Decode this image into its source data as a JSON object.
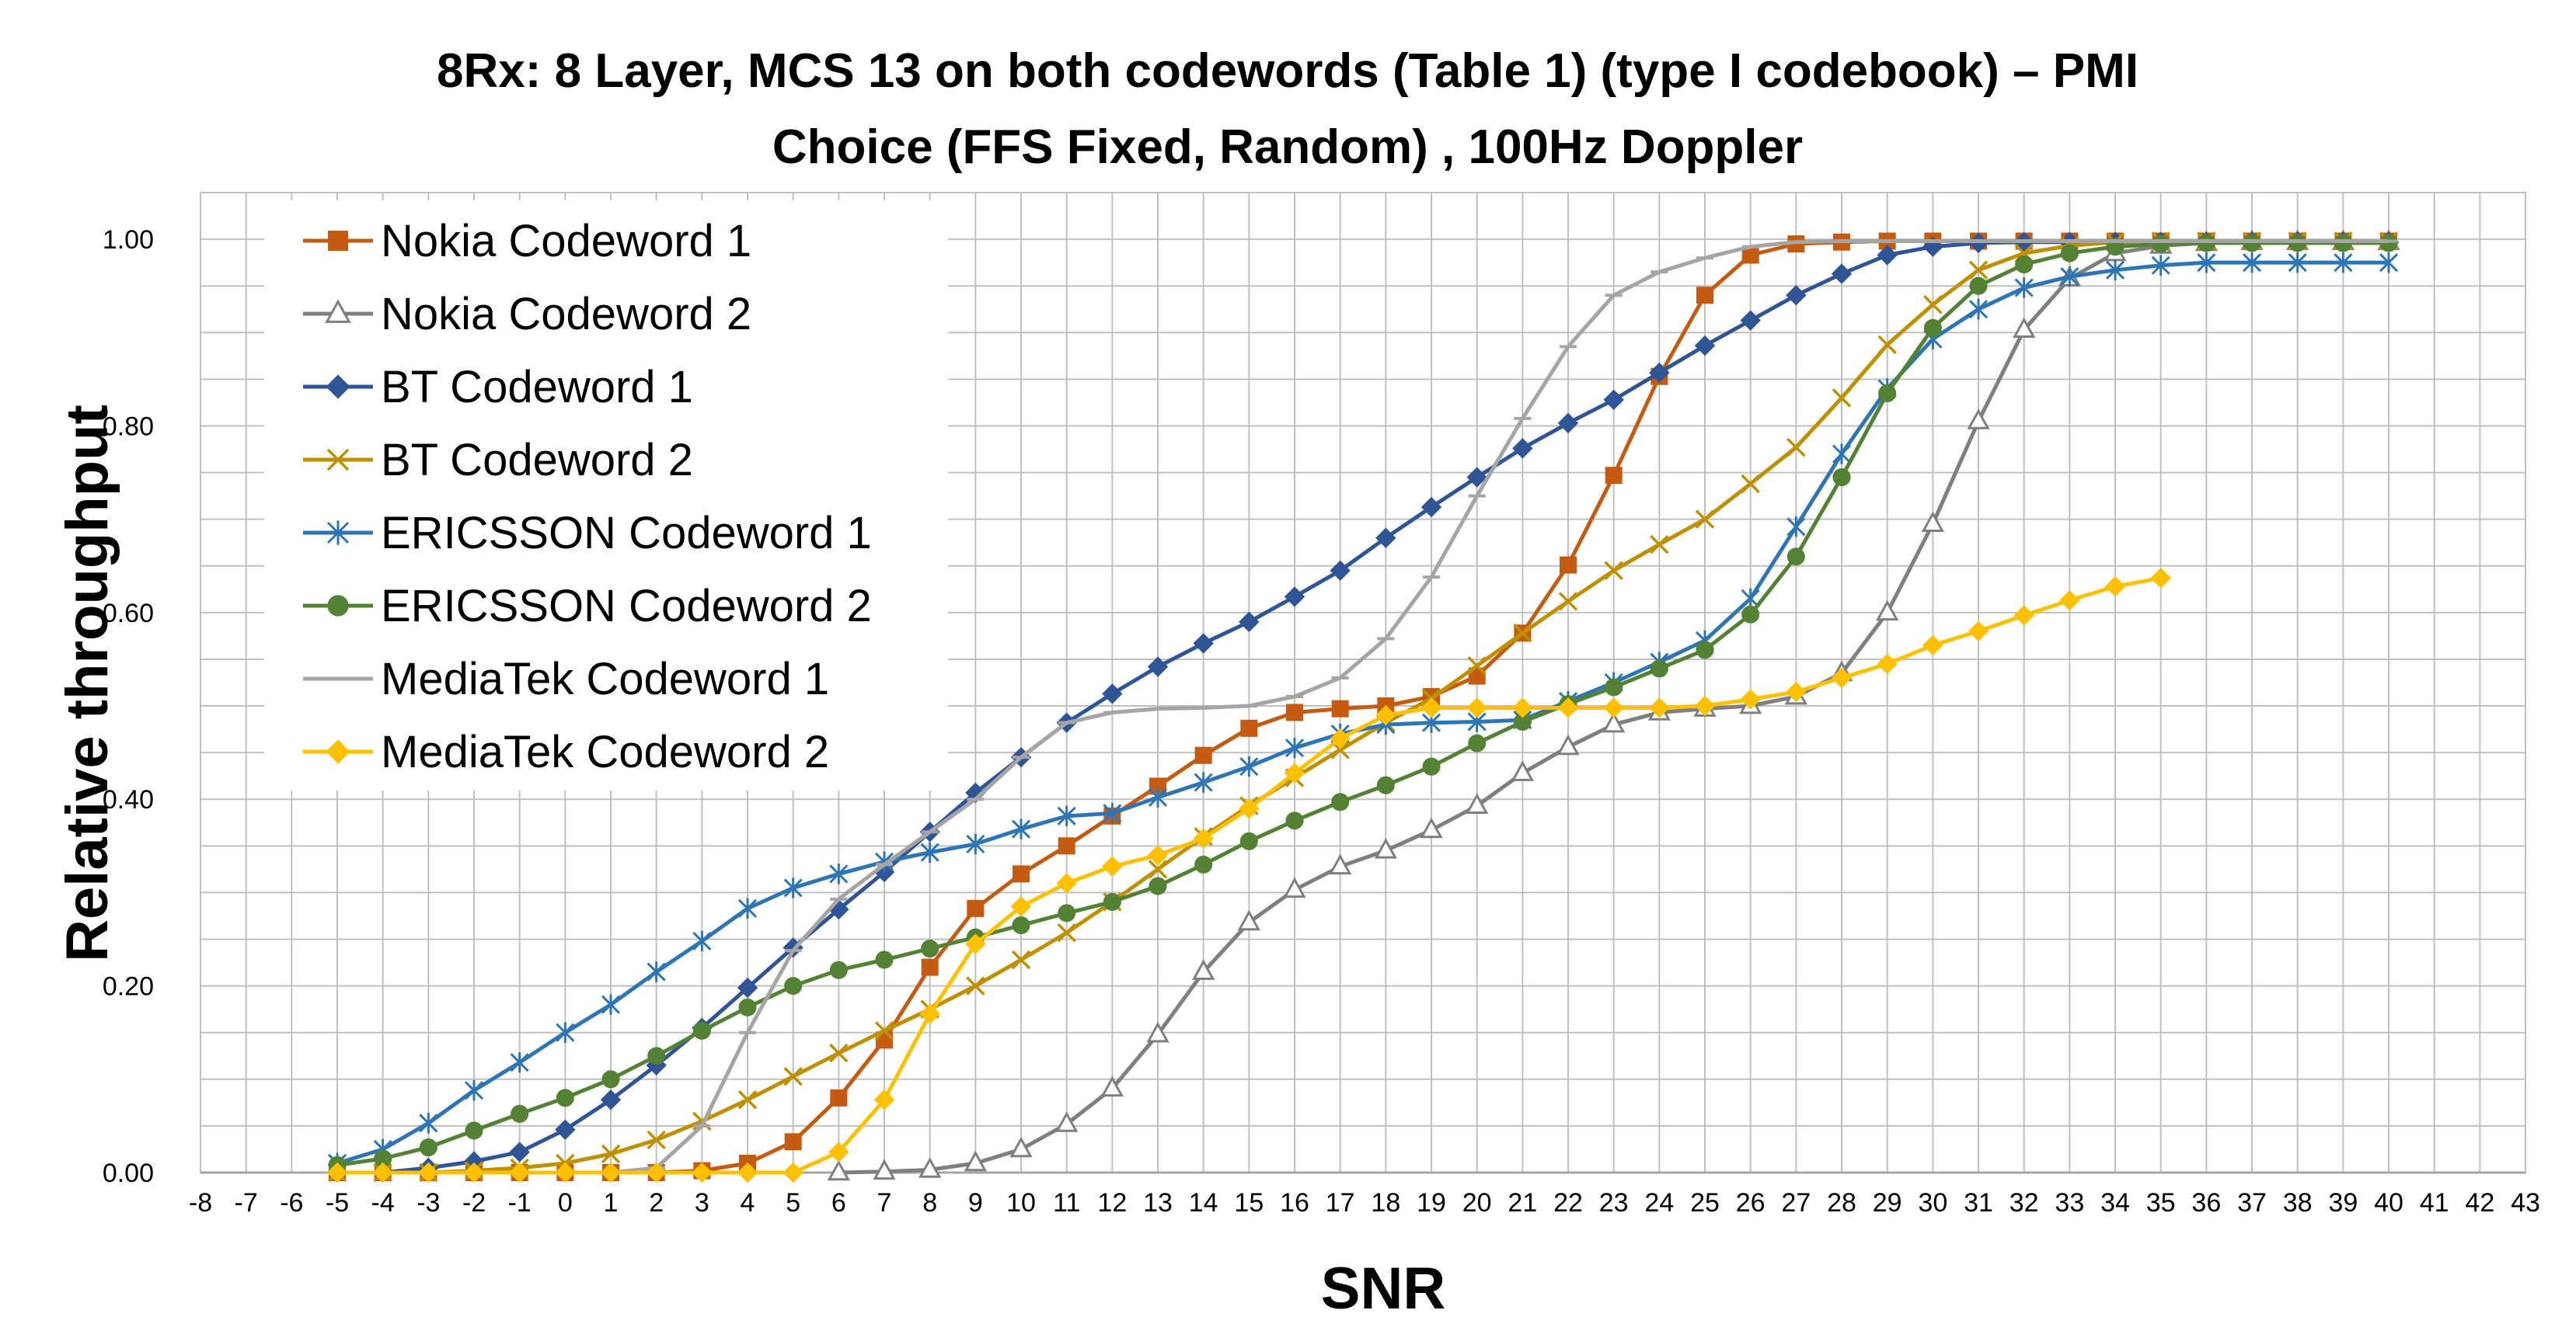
{
  "chart_data": {
    "type": "line",
    "title_lines": [
      "8Rx: 8 Layer, MCS 13 on both codewords (Table 1) (type I codebook) – PMI",
      "Choice (FFS Fixed, Random) , 100Hz Doppler"
    ],
    "xlabel": "SNR",
    "ylabel": "Relative throughput",
    "xlim": [
      -8,
      43
    ],
    "ylim": [
      0,
      1.05
    ],
    "x_ticks": [
      -8,
      -7,
      -6,
      -5,
      -4,
      -3,
      -2,
      -1,
      0,
      1,
      2,
      3,
      4,
      5,
      6,
      7,
      8,
      9,
      10,
      11,
      12,
      13,
      14,
      15,
      16,
      17,
      18,
      19,
      20,
      21,
      22,
      23,
      24,
      25,
      26,
      27,
      28,
      29,
      30,
      31,
      32,
      33,
      34,
      35,
      36,
      37,
      38,
      39,
      40,
      41,
      42,
      43
    ],
    "x_tick_labels": [
      "-8",
      "-7",
      "-6",
      "-5",
      "-4",
      "-3",
      "-2",
      "-1",
      "0",
      "1",
      "2",
      "3",
      "4",
      "5",
      "6",
      "7",
      "8",
      "9",
      "10",
      "11",
      "12",
      "13",
      "14",
      "15",
      "16",
      "17",
      "18",
      "19",
      "20",
      "21",
      "22",
      "23",
      "24",
      "25",
      "26",
      "27",
      "28",
      "29",
      "30",
      "31",
      "32",
      "33",
      "34",
      "35",
      "36",
      "37",
      "38",
      "39",
      "40",
      "41",
      "42",
      "43"
    ],
    "y_ticks": [
      0,
      0.2,
      0.4,
      0.6,
      0.8,
      1.0
    ],
    "y_tick_labels": [
      "0.00",
      "0.20",
      "0.40",
      "0.60",
      "0.80",
      "1.00"
    ],
    "grid": true,
    "legend_position": "top-left",
    "series": [
      {
        "name": "Nokia Codeword 1",
        "color": "#C55A11",
        "marker": "square",
        "x": [
          -5,
          -4,
          -3,
          -2,
          -1,
          0,
          1,
          2,
          3,
          4,
          5,
          6,
          7,
          8,
          9,
          10,
          11,
          12,
          13,
          14,
          15,
          16,
          17,
          18,
          19,
          20,
          21,
          22,
          23,
          24,
          25,
          26,
          27,
          28,
          29,
          30,
          31,
          32,
          33,
          34,
          35,
          36,
          37,
          38,
          39,
          40
        ],
        "y": [
          0,
          0,
          0,
          0,
          0,
          0,
          0,
          0,
          0.002,
          0.01,
          0.033,
          0.08,
          0.142,
          0.22,
          0.283,
          0.32,
          0.35,
          0.382,
          0.414,
          0.447,
          0.476,
          0.493,
          0.497,
          0.5,
          0.51,
          0.532,
          0.578,
          0.651,
          0.747,
          0.853,
          0.94,
          0.983,
          0.995,
          0.997,
          0.998,
          0.998,
          0.998,
          0.998,
          0.998,
          0.998,
          0.998,
          0.998,
          0.998,
          0.998,
          0.998,
          0.998
        ]
      },
      {
        "name": "Nokia Codeword 2",
        "color": "#7F7F7F",
        "marker": "triangle",
        "x": [
          6,
          7,
          8,
          9,
          10,
          11,
          12,
          13,
          14,
          15,
          16,
          17,
          18,
          19,
          20,
          21,
          22,
          23,
          24,
          25,
          26,
          27,
          28,
          29,
          30,
          31,
          32,
          33,
          34,
          35,
          36,
          37,
          38,
          39,
          40
        ],
        "y": [
          0,
          0.001,
          0.003,
          0.01,
          0.025,
          0.052,
          0.09,
          0.148,
          0.215,
          0.268,
          0.303,
          0.328,
          0.345,
          0.367,
          0.393,
          0.428,
          0.456,
          0.48,
          0.493,
          0.497,
          0.5,
          0.51,
          0.535,
          0.6,
          0.695,
          0.805,
          0.903,
          0.958,
          0.985,
          0.993,
          0.996,
          0.997,
          0.997,
          0.997,
          0.997
        ]
      },
      {
        "name": "BT Codeword 1",
        "color": "#2F5597",
        "marker": "diamond",
        "x": [
          -5,
          -4,
          -3,
          -2,
          -1,
          0,
          1,
          2,
          3,
          4,
          5,
          6,
          7,
          8,
          9,
          10,
          11,
          12,
          13,
          14,
          15,
          16,
          17,
          18,
          19,
          20,
          21,
          22,
          23,
          24,
          25,
          26,
          27,
          28,
          29,
          30,
          31,
          32,
          33,
          34,
          35,
          36,
          37,
          38,
          39,
          40
        ],
        "y": [
          0,
          0,
          0.005,
          0.012,
          0.022,
          0.046,
          0.078,
          0.115,
          0.155,
          0.198,
          0.241,
          0.282,
          0.322,
          0.365,
          0.407,
          0.445,
          0.482,
          0.513,
          0.542,
          0.567,
          0.59,
          0.617,
          0.645,
          0.68,
          0.713,
          0.745,
          0.776,
          0.803,
          0.828,
          0.857,
          0.886,
          0.913,
          0.94,
          0.963,
          0.983,
          0.992,
          0.996,
          0.997,
          0.997,
          0.997,
          0.997,
          0.997,
          0.997,
          0.997,
          0.997,
          0.997
        ]
      },
      {
        "name": "BT Codeword 2",
        "color": "#BF9000",
        "marker": "x",
        "x": [
          -5,
          -4,
          -3,
          -2,
          -1,
          0,
          1,
          2,
          3,
          4,
          5,
          6,
          7,
          8,
          9,
          10,
          11,
          12,
          13,
          14,
          15,
          16,
          17,
          18,
          19,
          20,
          21,
          22,
          23,
          24,
          25,
          26,
          27,
          28,
          29,
          30,
          31,
          32,
          33,
          34,
          35,
          36,
          37,
          38,
          39,
          40
        ],
        "y": [
          0,
          0,
          0,
          0.002,
          0.005,
          0.01,
          0.02,
          0.035,
          0.055,
          0.078,
          0.103,
          0.128,
          0.152,
          0.175,
          0.2,
          0.228,
          0.257,
          0.29,
          0.325,
          0.36,
          0.393,
          0.423,
          0.453,
          0.482,
          0.508,
          0.543,
          0.578,
          0.612,
          0.645,
          0.673,
          0.7,
          0.738,
          0.777,
          0.83,
          0.887,
          0.93,
          0.967,
          0.985,
          0.993,
          0.997,
          0.998,
          0.998,
          0.998,
          0.998,
          0.998,
          0.998
        ]
      },
      {
        "name": "ERICSSON Codeword 1",
        "color": "#2E75B6",
        "marker": "asterisk",
        "x": [
          -5,
          -4,
          -3,
          -2,
          -1,
          0,
          1,
          2,
          3,
          4,
          5,
          6,
          7,
          8,
          9,
          10,
          11,
          12,
          13,
          14,
          15,
          16,
          17,
          18,
          19,
          20,
          21,
          22,
          23,
          24,
          25,
          26,
          27,
          28,
          29,
          30,
          31,
          32,
          33,
          34,
          35,
          36,
          37,
          38,
          39,
          40
        ],
        "y": [
          0.01,
          0.025,
          0.053,
          0.088,
          0.118,
          0.15,
          0.18,
          0.215,
          0.248,
          0.283,
          0.305,
          0.32,
          0.333,
          0.343,
          0.352,
          0.368,
          0.382,
          0.385,
          0.402,
          0.418,
          0.435,
          0.455,
          0.47,
          0.48,
          0.482,
          0.483,
          0.485,
          0.505,
          0.525,
          0.547,
          0.57,
          0.615,
          0.692,
          0.77,
          0.84,
          0.893,
          0.925,
          0.948,
          0.96,
          0.967,
          0.972,
          0.975,
          0.975,
          0.975,
          0.975,
          0.975
        ]
      },
      {
        "name": "ERICSSON Codeword 2",
        "color": "#548235",
        "marker": "circle",
        "x": [
          -5,
          -4,
          -3,
          -2,
          -1,
          0,
          1,
          2,
          3,
          4,
          5,
          6,
          7,
          8,
          9,
          10,
          11,
          12,
          13,
          14,
          15,
          16,
          17,
          18,
          19,
          20,
          21,
          22,
          23,
          24,
          25,
          26,
          27,
          28,
          29,
          30,
          31,
          32,
          33,
          34,
          35,
          36,
          37,
          38,
          39,
          40
        ],
        "y": [
          0.008,
          0.015,
          0.027,
          0.045,
          0.063,
          0.08,
          0.1,
          0.125,
          0.152,
          0.177,
          0.2,
          0.217,
          0.228,
          0.24,
          0.252,
          0.265,
          0.278,
          0.29,
          0.307,
          0.33,
          0.355,
          0.377,
          0.397,
          0.415,
          0.435,
          0.46,
          0.483,
          0.502,
          0.52,
          0.54,
          0.56,
          0.598,
          0.66,
          0.745,
          0.835,
          0.905,
          0.95,
          0.973,
          0.985,
          0.992,
          0.995,
          0.996,
          0.996,
          0.996,
          0.996,
          0.996
        ]
      },
      {
        "name": "MediaTek Codeword 1",
        "color": "#A5A5A5",
        "marker": "dash",
        "x": [
          -5,
          -4,
          -3,
          -2,
          -1,
          0,
          1,
          2,
          3,
          4,
          5,
          6,
          7,
          8,
          9,
          10,
          11,
          12,
          13,
          14,
          15,
          16,
          17,
          18,
          19,
          20,
          21,
          22,
          23,
          24,
          25,
          26,
          27,
          28,
          29,
          30,
          31,
          32,
          33,
          34,
          35,
          36,
          37,
          38,
          39,
          40
        ],
        "y": [
          0,
          0,
          0,
          0,
          0,
          0,
          0,
          0.005,
          0.05,
          0.15,
          0.238,
          0.293,
          0.33,
          0.365,
          0.4,
          0.445,
          0.482,
          0.493,
          0.497,
          0.498,
          0.5,
          0.51,
          0.53,
          0.572,
          0.638,
          0.725,
          0.808,
          0.885,
          0.94,
          0.965,
          0.98,
          0.992,
          0.997,
          0.998,
          0.998,
          0.998,
          0.998,
          0.998,
          0.998,
          0.998,
          0.998,
          0.998,
          0.998,
          0.998,
          0.998,
          0.998
        ]
      },
      {
        "name": "MediaTek Codeword 2",
        "color": "#FFC000",
        "marker": "diamond",
        "x": [
          -5,
          -4,
          -3,
          -2,
          -1,
          0,
          1,
          2,
          3,
          4,
          5,
          6,
          7,
          8,
          9,
          10,
          11,
          12,
          13,
          14,
          15,
          16,
          17,
          18,
          19,
          20,
          21,
          22,
          23,
          24,
          25,
          26,
          27,
          28,
          29,
          30,
          31,
          32,
          33,
          34,
          35
        ],
        "y": [
          0,
          0,
          0,
          0,
          0,
          0,
          0,
          0,
          0,
          0,
          0,
          0.022,
          0.078,
          0.17,
          0.245,
          0.285,
          0.31,
          0.328,
          0.34,
          0.358,
          0.39,
          0.428,
          0.465,
          0.49,
          0.498,
          0.498,
          0.498,
          0.498,
          0.498,
          0.498,
          0.5,
          0.507,
          0.515,
          0.53,
          0.545,
          0.565,
          0.58,
          0.597,
          0.613,
          0.628,
          0.637
        ]
      }
    ]
  }
}
